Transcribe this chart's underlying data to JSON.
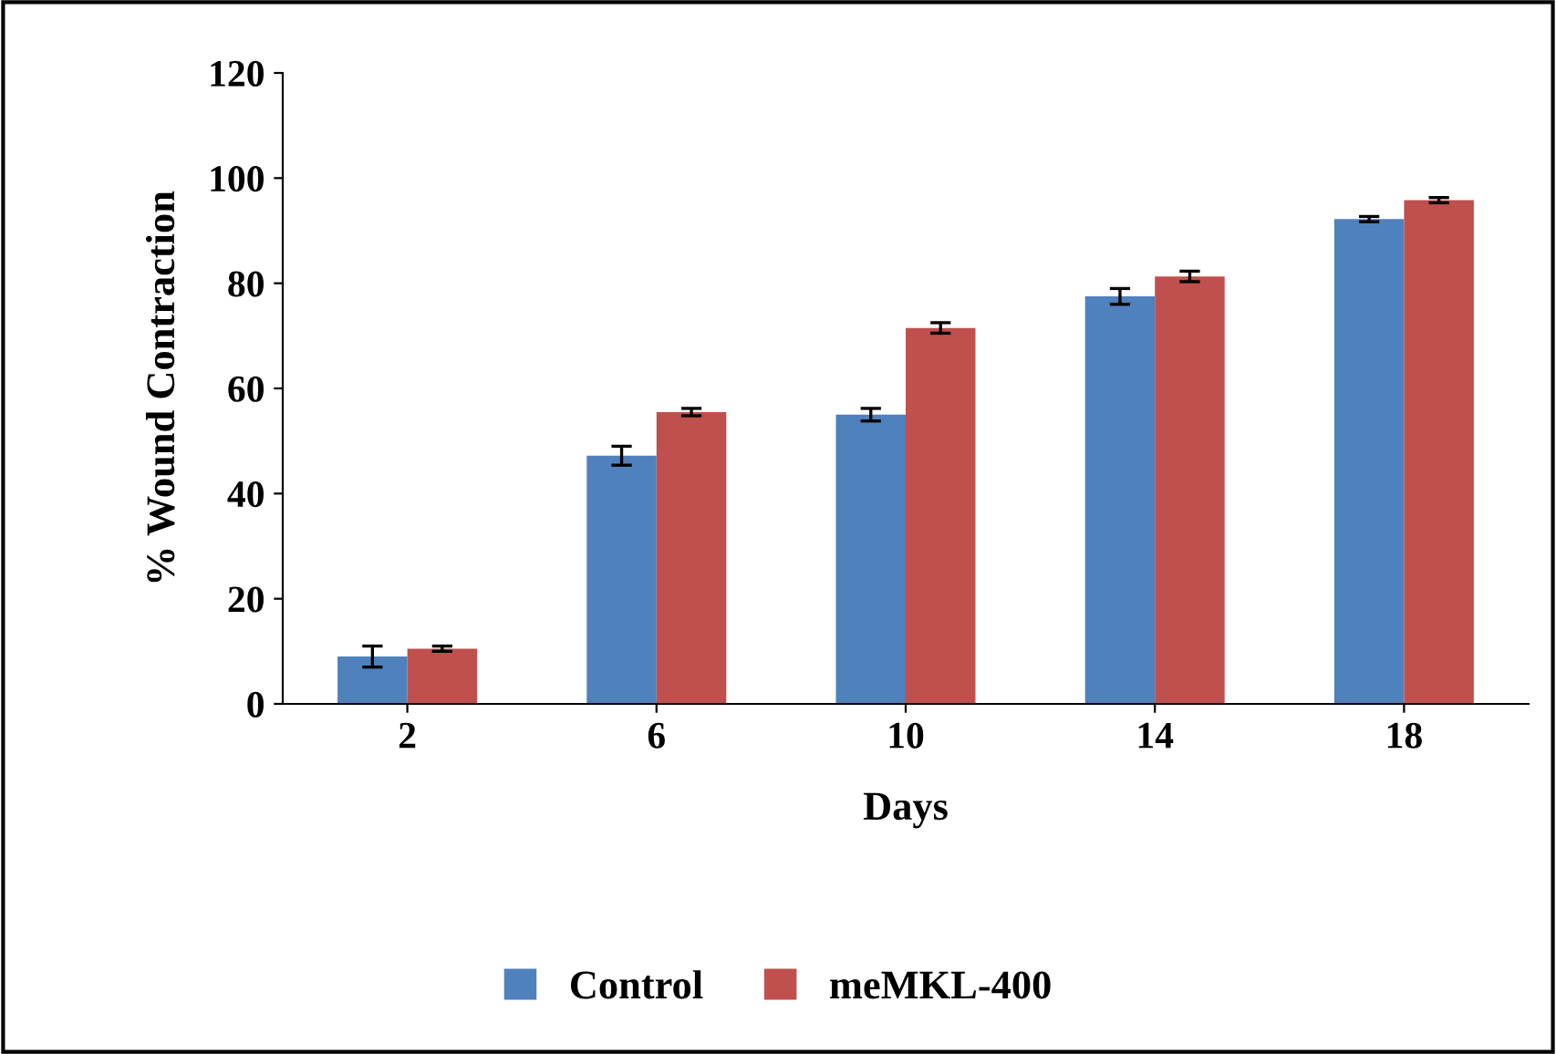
{
  "chart_data": {
    "type": "bar",
    "xlabel": "Days",
    "ylabel": "% Wound Contraction",
    "categories": [
      "2",
      "6",
      "10",
      "14",
      "18"
    ],
    "series": [
      {
        "name": "Control",
        "color": "#4f81bd",
        "values": [
          9.0,
          47.2,
          55.0,
          77.5,
          92.2
        ],
        "errors": [
          2.0,
          1.8,
          1.2,
          1.5,
          0.5
        ]
      },
      {
        "name": "meMKL-400",
        "color": "#c0504d",
        "values": [
          10.5,
          55.5,
          71.5,
          81.3,
          95.8
        ],
        "errors": [
          0.5,
          0.7,
          1.0,
          1.0,
          0.5
        ]
      }
    ],
    "ylim": [
      0,
      120
    ],
    "yticks": [
      0,
      20,
      40,
      60,
      80,
      100,
      120
    ],
    "grid": false,
    "legend": "bottom"
  }
}
